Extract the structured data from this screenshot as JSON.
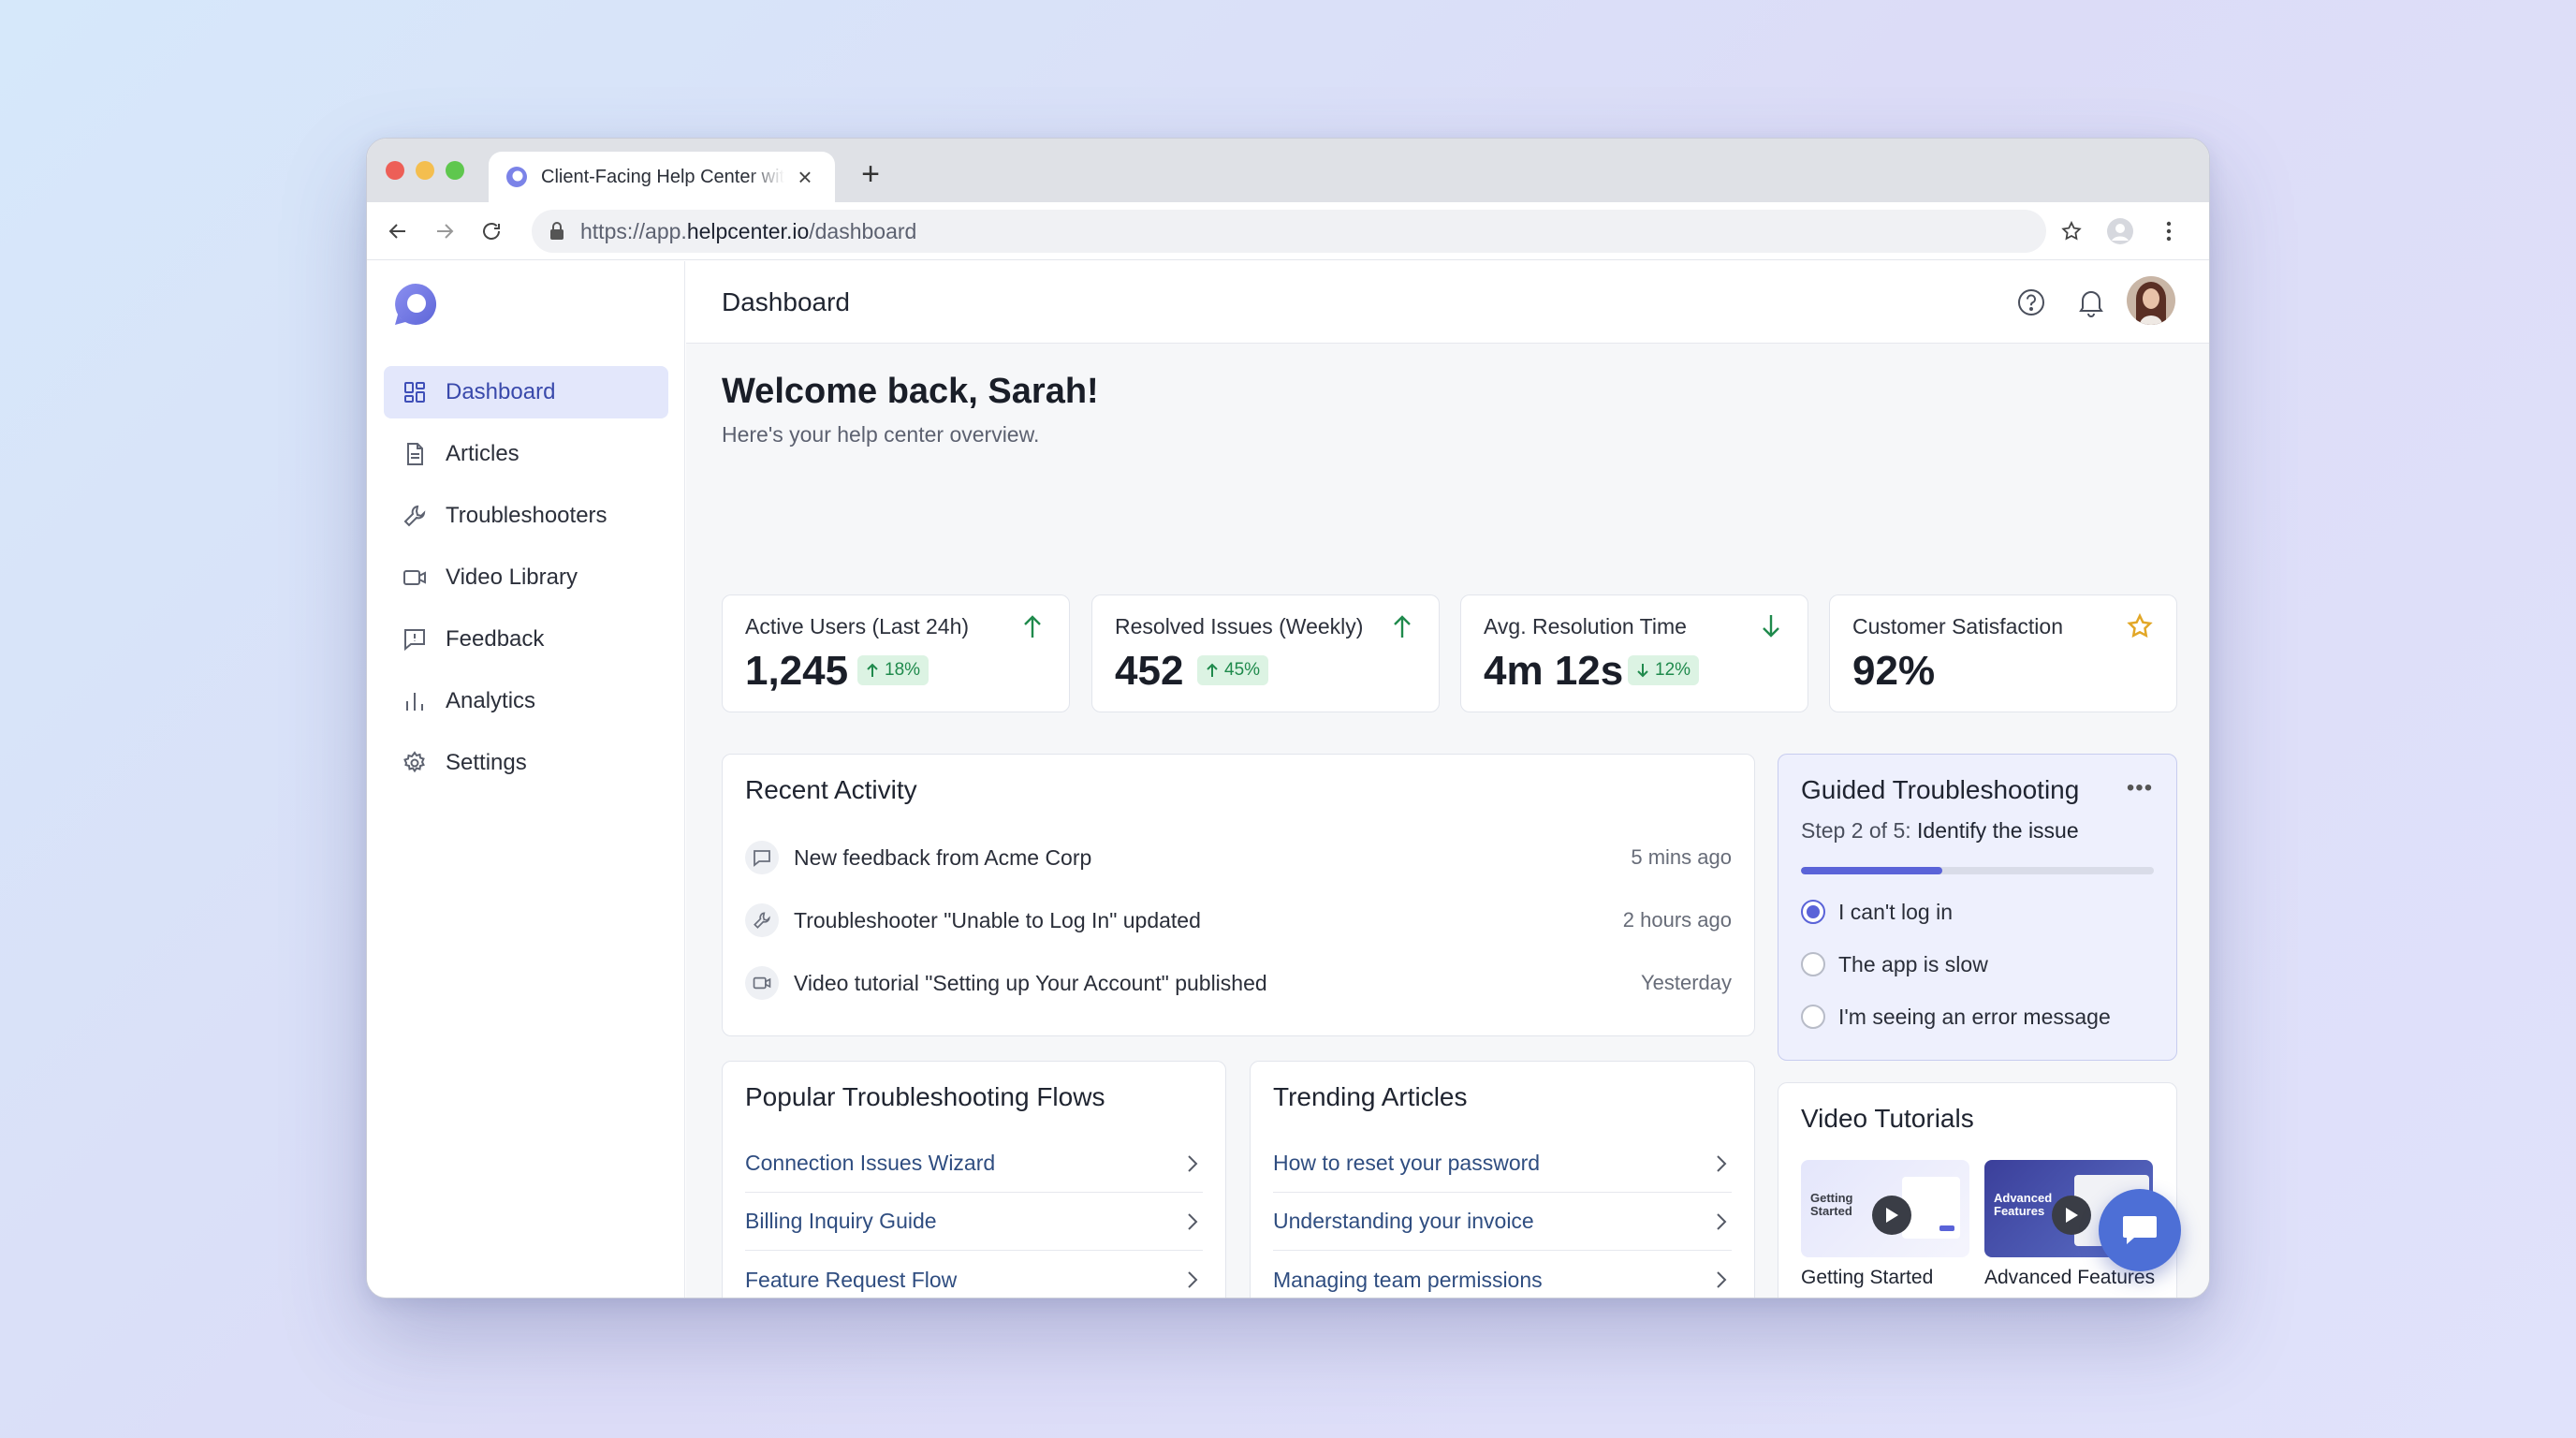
{
  "browser": {
    "tab_title": "Client-Facing Help Center with",
    "url_prefix": "https://app.",
    "url_host": "helpcenter.io",
    "url_path": "/dashboard"
  },
  "sidebar": {
    "items": [
      {
        "label": "Dashboard",
        "icon": "grid-icon"
      },
      {
        "label": "Articles",
        "icon": "document-icon"
      },
      {
        "label": "Troubleshooters",
        "icon": "wrench-icon"
      },
      {
        "label": "Video Library",
        "icon": "video-icon"
      },
      {
        "label": "Feedback",
        "icon": "feedback-icon"
      },
      {
        "label": "Analytics",
        "icon": "bar-chart-icon"
      },
      {
        "label": "Settings",
        "icon": "gear-icon"
      }
    ]
  },
  "header": {
    "title": "Dashboard"
  },
  "welcome": {
    "title": "Welcome back, Sarah!",
    "subtitle": "Here's your help center overview."
  },
  "stats": [
    {
      "label": "Active Users (Last 24h)",
      "value": "1,245",
      "badge": "18%",
      "trend": "up"
    },
    {
      "label": "Resolved Issues (Weekly)",
      "value": "452",
      "badge": "45%",
      "trend": "up"
    },
    {
      "label": "Avg. Resolution Time",
      "value": "4m 12s",
      "badge": "12%",
      "trend": "down"
    },
    {
      "label": "Customer Satisfaction",
      "value": "92%",
      "trend": "star"
    }
  ],
  "recent_activity": {
    "title": "Recent Activity",
    "items": [
      {
        "text": "New feedback from Acme Corp",
        "time": "5 mins ago",
        "icon": "comment-icon"
      },
      {
        "text": "Troubleshooter \"Unable to Log In\" updated",
        "time": "2 hours ago",
        "icon": "wrench-icon"
      },
      {
        "text": "Video tutorial \"Setting up Your Account\" published",
        "time": "Yesterday",
        "icon": "video-icon"
      }
    ]
  },
  "guided": {
    "title": "Guided Troubleshooting",
    "step_prefix": "Step 2 of 5: ",
    "step_name": "Identify the issue",
    "progress": 0.4,
    "options": [
      {
        "label": "I can't log in",
        "selected": true
      },
      {
        "label": "The app is slow",
        "selected": false
      },
      {
        "label": "I'm seeing an error message",
        "selected": false
      }
    ]
  },
  "flows": {
    "title": "Popular Troubleshooting Flows",
    "items": [
      "Connection Issues Wizard",
      "Billing Inquiry Guide",
      "Feature Request Flow"
    ]
  },
  "articles": {
    "title": "Trending Articles",
    "items": [
      "How to reset your password",
      "Understanding your invoice",
      "Managing team permissions"
    ]
  },
  "videos": {
    "title": "Video Tutorials",
    "items": [
      {
        "caption": "Getting Started",
        "thumb_line1": "Getting",
        "thumb_line2": "Started"
      },
      {
        "caption": "Advanced Features",
        "thumb_line1": "Advanced",
        "thumb_line2": "Features"
      }
    ]
  },
  "colors": {
    "accent": "#5a63d8",
    "positive": "#1f8a4c",
    "star": "#e2a727",
    "fab": "#4d6fd6"
  }
}
